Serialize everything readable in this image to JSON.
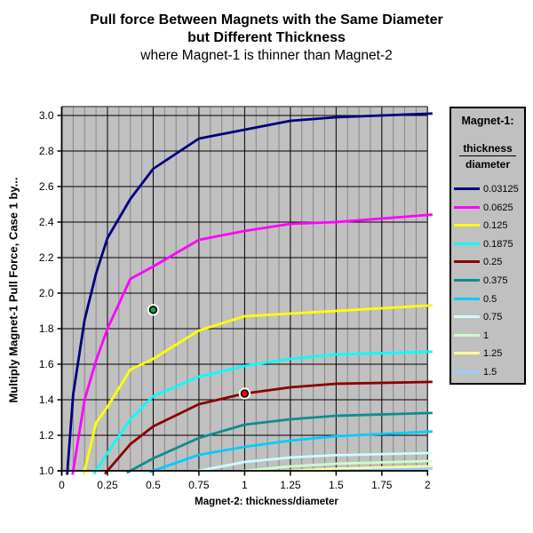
{
  "title": {
    "line1": "Pull force Between Magnets with the Same Diameter",
    "line2": "but Different Thickness",
    "subtitle": "where Magnet-1 is thinner than Magnet-2"
  },
  "axes": {
    "x": {
      "title": "Magnet-2: thickness/diameter",
      "min": 0,
      "max": 2,
      "tick_labels": [
        "0",
        "0.25",
        "0.5",
        "0.75",
        "1",
        "1.25",
        "1.5",
        "1.75",
        "2"
      ],
      "major_ticks": [
        0,
        0.25,
        0.5,
        0.75,
        1,
        1.25,
        1.5,
        1.75,
        2
      ],
      "minor_step": 0.0625
    },
    "y": {
      "title": "Multiply Magnet-1 Pull Force, Case 1 by...",
      "min": 1.0,
      "max": 3.05,
      "tick_labels": [
        "1.0",
        "1.2",
        "1.4",
        "1.6",
        "1.8",
        "2.0",
        "2.2",
        "2.4",
        "2.6",
        "2.8",
        "3.0"
      ],
      "major_ticks": [
        1.0,
        1.2,
        1.4,
        1.6,
        1.8,
        2.0,
        2.2,
        2.4,
        2.6,
        2.8,
        3.0
      ]
    }
  },
  "legend": {
    "title": "Magnet-1:",
    "fraction_numerator": "thickness",
    "fraction_denominator": "diameter",
    "entries": [
      {
        "label": "0.03125",
        "color": "#000080"
      },
      {
        "label": "0.0625",
        "color": "#FF00FF"
      },
      {
        "label": "0.125",
        "color": "#FFFF00"
      },
      {
        "label": "0.1875",
        "color": "#00FFFF"
      },
      {
        "label": "0.25",
        "color": "#8B0000"
      },
      {
        "label": "0.375",
        "color": "#0D8E8E"
      },
      {
        "label": "0.5",
        "color": "#00CCFF"
      },
      {
        "label": "0.75",
        "color": "#CCFFFF"
      },
      {
        "label": "1",
        "color": "#CCFFCC"
      },
      {
        "label": "1.25",
        "color": "#FFFF99"
      },
      {
        "label": "1.5",
        "color": "#99CCFF"
      }
    ]
  },
  "chart_data": {
    "type": "line",
    "title": "Pull force Between Magnets with the Same Diameter but Different Thickness",
    "subtitle": "where Magnet-1 is thinner than Magnet-2",
    "xlabel": "Magnet-2: thickness/diameter",
    "ylabel": "Multiply Magnet-1 Pull Force, Case 1 by...",
    "xlim": [
      0,
      2
    ],
    "ylim": [
      1.0,
      3.05
    ],
    "x_major_grid_step": 0.25,
    "x_minor_grid_step": 0.0625,
    "y_major_grid_step": 0.2,
    "plot_background": "#C0C0C0",
    "legend_position": "right",
    "series": [
      {
        "name": "0.03125",
        "color": "#000080",
        "points": [
          [
            0.03125,
            1.0
          ],
          [
            0.0625,
            1.43
          ],
          [
            0.125,
            1.85
          ],
          [
            0.1875,
            2.11
          ],
          [
            0.25,
            2.31
          ],
          [
            0.375,
            2.53
          ],
          [
            0.5,
            2.7
          ],
          [
            0.75,
            2.87
          ],
          [
            1,
            2.92
          ],
          [
            1.25,
            2.97
          ],
          [
            1.5,
            2.99
          ],
          [
            2,
            3.01
          ]
        ]
      },
      {
        "name": "0.0625",
        "color": "#FF00FF",
        "points": [
          [
            0.0625,
            1.0
          ],
          [
            0.125,
            1.4
          ],
          [
            0.1875,
            1.62
          ],
          [
            0.25,
            1.8
          ],
          [
            0.375,
            2.08
          ],
          [
            0.5,
            2.15
          ],
          [
            0.75,
            2.3
          ],
          [
            1,
            2.35
          ],
          [
            1.25,
            2.39
          ],
          [
            1.5,
            2.4
          ],
          [
            2,
            2.44
          ]
        ]
      },
      {
        "name": "0.125",
        "color": "#FFFF00",
        "points": [
          [
            0.125,
            1.0
          ],
          [
            0.1875,
            1.27
          ],
          [
            0.25,
            1.36
          ],
          [
            0.375,
            1.57
          ],
          [
            0.5,
            1.63
          ],
          [
            0.75,
            1.79
          ],
          [
            1,
            1.87
          ],
          [
            1.25,
            1.885
          ],
          [
            1.5,
            1.9
          ],
          [
            2,
            1.93
          ]
        ]
      },
      {
        "name": "0.1875",
        "color": "#00FFFF",
        "points": [
          [
            0.1875,
            1.0
          ],
          [
            0.25,
            1.1
          ],
          [
            0.375,
            1.29
          ],
          [
            0.5,
            1.42
          ],
          [
            0.75,
            1.53
          ],
          [
            1,
            1.59
          ],
          [
            1.25,
            1.63
          ],
          [
            1.5,
            1.655
          ],
          [
            2,
            1.67
          ]
        ]
      },
      {
        "name": "0.25",
        "color": "#8B0000",
        "points": [
          [
            0.25,
            1.0
          ],
          [
            0.375,
            1.15
          ],
          [
            0.5,
            1.25
          ],
          [
            0.75,
            1.375
          ],
          [
            1,
            1.435
          ],
          [
            1.25,
            1.47
          ],
          [
            1.5,
            1.49
          ],
          [
            2,
            1.5
          ]
        ]
      },
      {
        "name": "0.375",
        "color": "#0D8E8E",
        "points": [
          [
            0.375,
            1.0
          ],
          [
            0.5,
            1.07
          ],
          [
            0.75,
            1.185
          ],
          [
            1,
            1.26
          ],
          [
            1.25,
            1.29
          ],
          [
            1.5,
            1.31
          ],
          [
            2,
            1.325
          ]
        ]
      },
      {
        "name": "0.5",
        "color": "#00CCFF",
        "points": [
          [
            0.5,
            1.0
          ],
          [
            0.75,
            1.09
          ],
          [
            1,
            1.135
          ],
          [
            1.25,
            1.17
          ],
          [
            1.5,
            1.195
          ],
          [
            2,
            1.22
          ]
        ]
      },
      {
        "name": "0.75",
        "color": "#CCFFFF",
        "points": [
          [
            0.75,
            1.0
          ],
          [
            1,
            1.05
          ],
          [
            1.25,
            1.075
          ],
          [
            1.5,
            1.088
          ],
          [
            2,
            1.1
          ]
        ]
      },
      {
        "name": "1",
        "color": "#CCFFCC",
        "points": [
          [
            1,
            1.0
          ],
          [
            1.25,
            1.025
          ],
          [
            1.5,
            1.04
          ],
          [
            2,
            1.055
          ]
        ]
      },
      {
        "name": "1.25",
        "color": "#FFFF99",
        "points": [
          [
            1.25,
            1.0
          ],
          [
            1.5,
            1.012
          ],
          [
            2,
            1.025
          ]
        ]
      },
      {
        "name": "1.5",
        "color": "#99CCFF",
        "points": [
          [
            1.5,
            1.0
          ],
          [
            2,
            1.012
          ]
        ]
      }
    ],
    "markers": [
      {
        "name": "green-point",
        "x": 0.5,
        "y": 1.906,
        "color": "#1FA03C"
      },
      {
        "name": "red-point",
        "x": 1.0,
        "y": 1.435,
        "color": "#FF0000"
      }
    ]
  },
  "colors": {
    "page_background": "#FFFFFF",
    "plot_background": "#C0C0C0",
    "major_gridline": "#000000",
    "minor_gridline": "#878787",
    "axis_line": "#000000",
    "plot_border": "#3C3C3C",
    "legend_background": "#C0C0C0",
    "legend_border": "#000000",
    "text": "#000000"
  }
}
